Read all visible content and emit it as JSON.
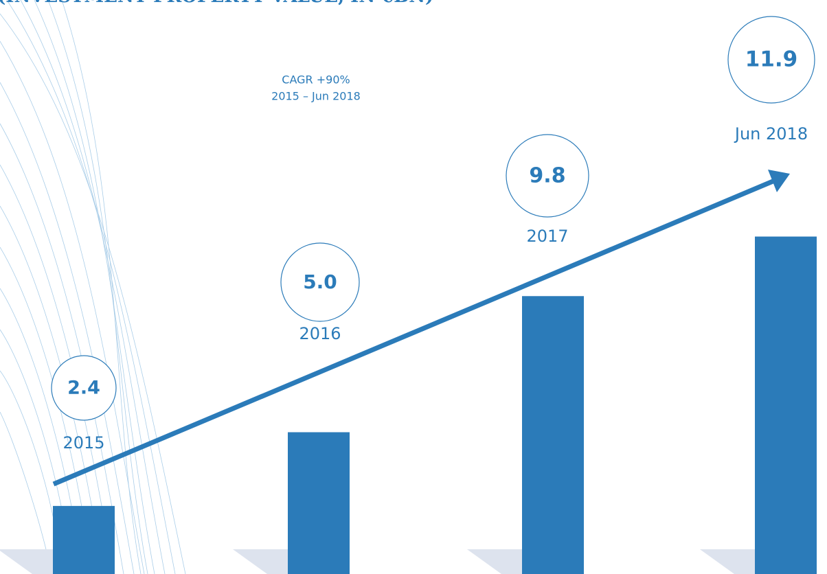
{
  "chart_data": {
    "type": "bar",
    "title": "(INVESTMENT PROPERTY VALUE, IN €BN)",
    "annotations": [
      "CAGR +90%",
      "2015 – Jun 2018"
    ],
    "categories": [
      "2015",
      "2016",
      "2017",
      "Jun 2018"
    ],
    "values": [
      2.4,
      5.0,
      9.8,
      11.9
    ],
    "value_labels": [
      "2.4",
      "5.0",
      "9.8",
      "11.9"
    ],
    "color": "#2b7bb9"
  }
}
